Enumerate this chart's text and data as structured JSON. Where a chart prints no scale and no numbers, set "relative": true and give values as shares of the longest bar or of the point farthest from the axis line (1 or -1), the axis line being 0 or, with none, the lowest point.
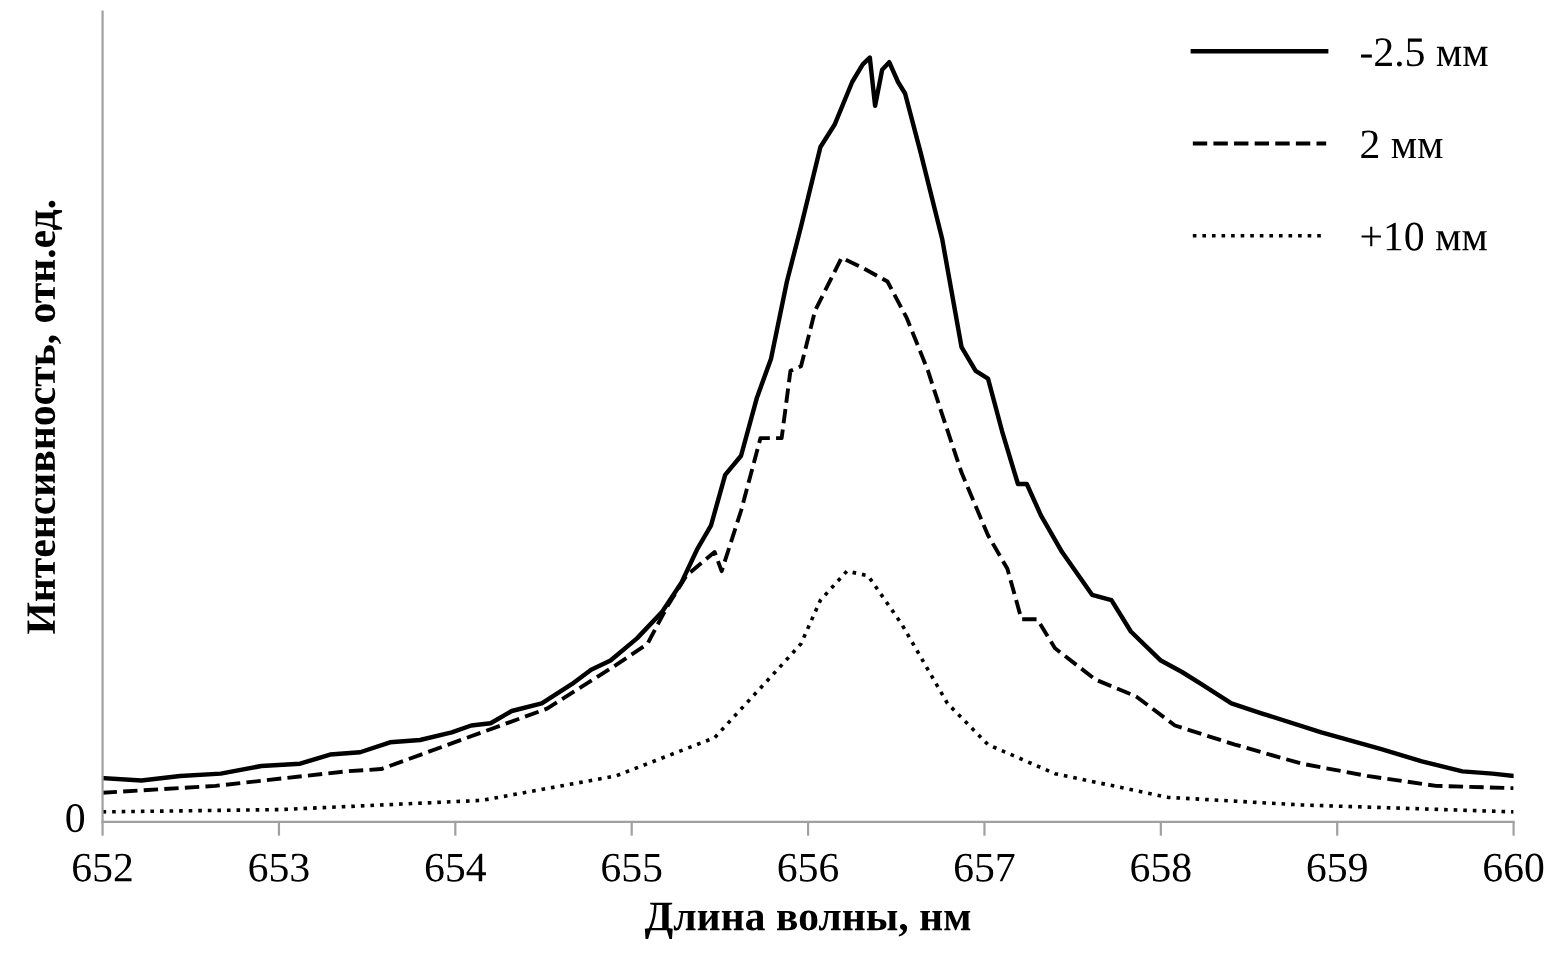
{
  "chart_data": {
    "type": "line",
    "relative": true,
    "xlabel": "Длина волны, нм",
    "ylabel": "Интенсивность, отн.ед.",
    "xlim": [
      652,
      660
    ],
    "xticks": [
      652,
      653,
      654,
      655,
      656,
      657,
      658,
      659,
      660
    ],
    "legend": "top right",
    "grid": false,
    "marker": "none",
    "annotations": [
      "0"
    ],
    "series": [
      {
        "name": "-2.5 мм",
        "color": "#000000",
        "line_style": "solid",
        "x": [
          652.01,
          652.22,
          652.44,
          652.67,
          652.9,
          653.12,
          653.29,
          653.46,
          653.63,
          653.8,
          653.98,
          654.09,
          654.2,
          654.32,
          654.49,
          654.66,
          654.77,
          654.88,
          655.03,
          655.17,
          655.28,
          655.37,
          655.45,
          655.53,
          655.62,
          655.71,
          655.79,
          655.88,
          655.96,
          656.07,
          656.15,
          656.25,
          656.31,
          656.35,
          656.38,
          656.42,
          656.46,
          656.51,
          656.55,
          656.64,
          656.76,
          656.87,
          656.95,
          657.02,
          657.1,
          657.19,
          657.24,
          657.32,
          657.44,
          657.61,
          657.72,
          657.83,
          658.0,
          658.12,
          658.23,
          658.4,
          658.57,
          658.91,
          659.25,
          659.48,
          659.71,
          659.88,
          660.0
        ],
        "values": [
          0.057,
          0.054,
          0.06,
          0.063,
          0.073,
          0.076,
          0.088,
          0.091,
          0.104,
          0.107,
          0.117,
          0.126,
          0.129,
          0.145,
          0.155,
          0.18,
          0.199,
          0.211,
          0.24,
          0.274,
          0.312,
          0.356,
          0.388,
          0.454,
          0.479,
          0.555,
          0.606,
          0.707,
          0.779,
          0.883,
          0.912,
          0.968,
          0.991,
          1,
          0.937,
          0.984,
          0.994,
          0.968,
          0.953,
          0.874,
          0.763,
          0.621,
          0.59,
          0.58,
          0.511,
          0.442,
          0.442,
          0.401,
          0.353,
          0.297,
          0.29,
          0.249,
          0.211,
          0.196,
          0.18,
          0.155,
          0.142,
          0.117,
          0.095,
          0.079,
          0.066,
          0.063,
          0.06
        ]
      },
      {
        "name": "2 мм",
        "color": "#000000",
        "line_style": "dashed",
        "x": [
          652.0,
          652.64,
          653.38,
          653.58,
          654.15,
          654.52,
          654.91,
          655.09,
          655.2,
          655.31,
          655.47,
          655.51,
          655.62,
          655.73,
          655.85,
          655.9,
          655.96,
          656.04,
          656.19,
          656.3,
          656.45,
          656.56,
          656.68,
          656.76,
          656.87,
          657.02,
          657.13,
          657.21,
          657.3,
          657.4,
          657.63,
          657.86,
          658.08,
          658.42,
          658.8,
          659.17,
          659.56,
          660.0
        ],
        "values": [
          0.038,
          0.047,
          0.066,
          0.069,
          0.117,
          0.148,
          0.205,
          0.233,
          0.281,
          0.322,
          0.353,
          0.328,
          0.407,
          0.502,
          0.502,
          0.59,
          0.596,
          0.669,
          0.738,
          0.726,
          0.707,
          0.659,
          0.59,
          0.533,
          0.457,
          0.375,
          0.331,
          0.265,
          0.265,
          0.227,
          0.186,
          0.164,
          0.126,
          0.101,
          0.076,
          0.06,
          0.047,
          0.044
        ]
      },
      {
        "name": "+10 мм",
        "color": "#000000",
        "line_style": "dotted",
        "x": [
          652.0,
          653.01,
          654.15,
          654.91,
          655.47,
          655.85,
          655.96,
          656.07,
          656.22,
          656.34,
          656.53,
          656.79,
          657.02,
          657.4,
          658.04,
          658.8,
          660.0
        ],
        "values": [
          0.013,
          0.016,
          0.028,
          0.06,
          0.11,
          0.205,
          0.233,
          0.29,
          0.328,
          0.322,
          0.259,
          0.155,
          0.101,
          0.063,
          0.032,
          0.022,
          0.013
        ]
      }
    ]
  }
}
